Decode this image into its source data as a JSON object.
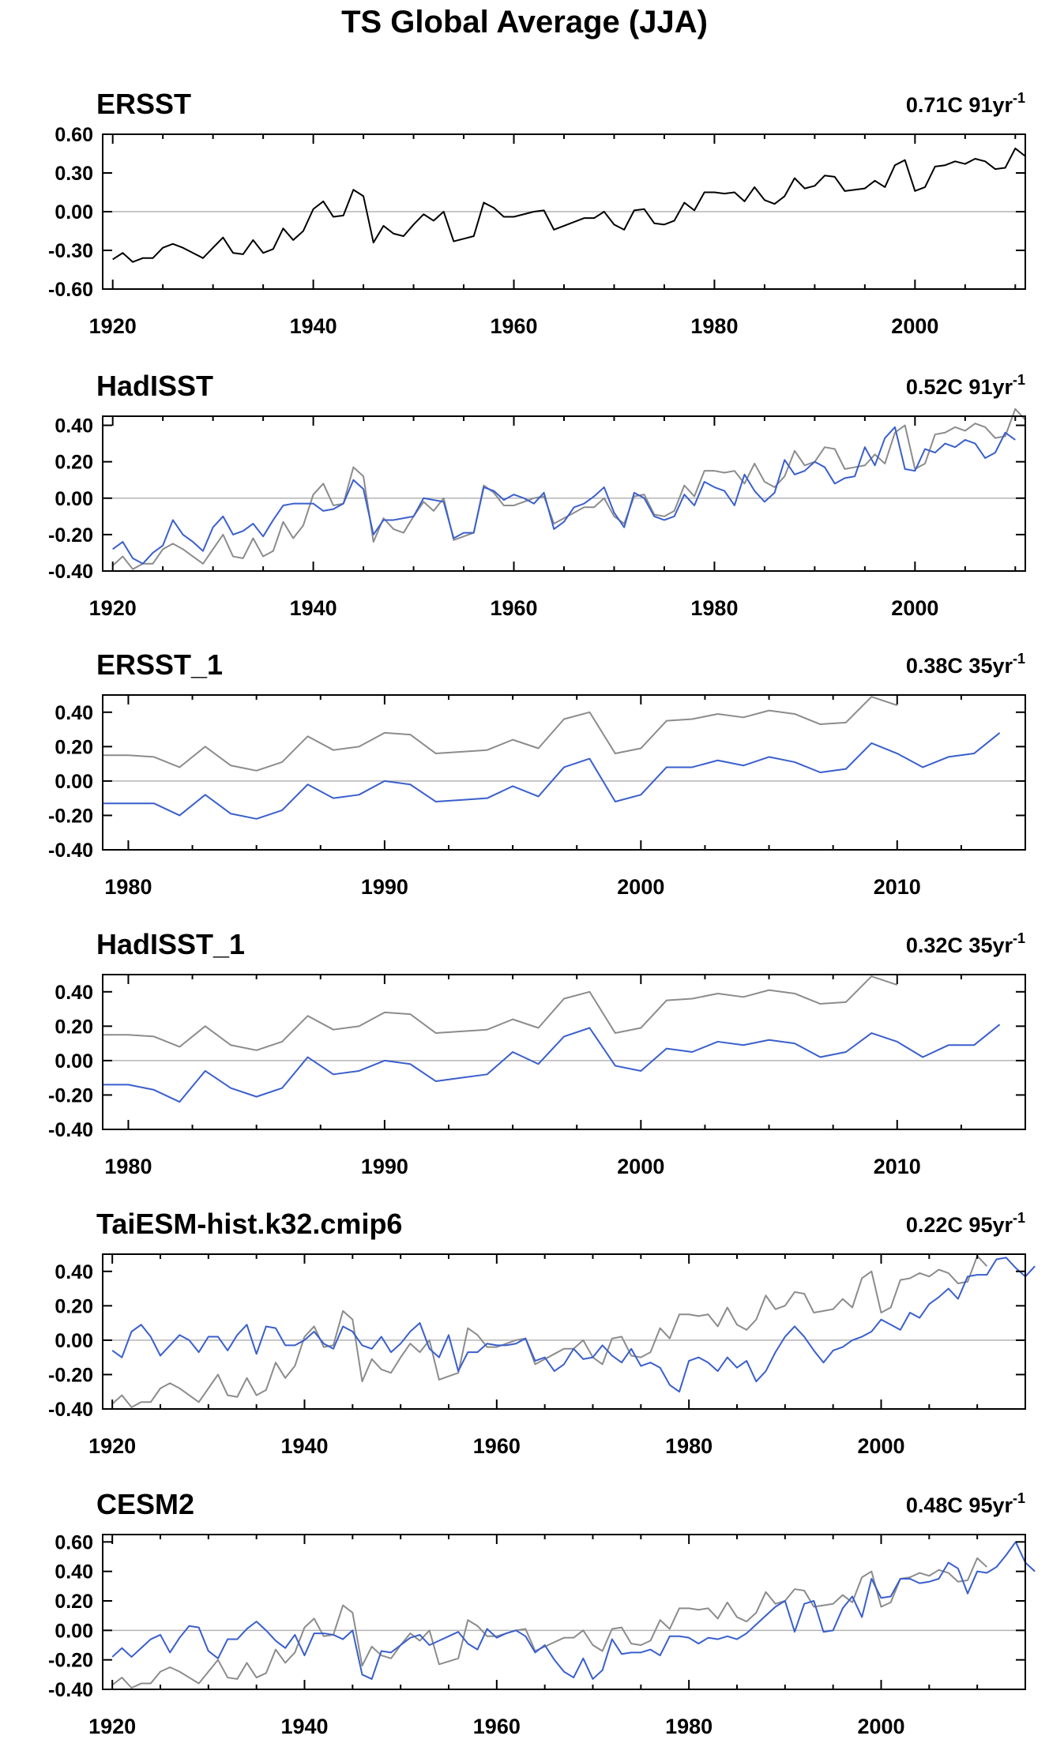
{
  "title": "TS Global Average (JJA)",
  "colors": {
    "reference": "#000000",
    "reference_overlay": "#8c8c8c",
    "model": "#3a5fcd",
    "zero_line": "#b4b4b4"
  },
  "chart_data": [
    {
      "type": "line",
      "title": "ERSST",
      "trend": "0.71C 91yr",
      "trend_exponent": "-1",
      "xlim": [
        1919,
        2011
      ],
      "ylim": [
        -0.6,
        0.6
      ],
      "yticks": [
        "0.60",
        "0.30",
        "0.00",
        "-0.30",
        "-0.60"
      ],
      "yvals": [
        0.6,
        0.3,
        0.0,
        -0.3,
        -0.6
      ],
      "xticks": [
        1920,
        1940,
        1960,
        1980,
        2000
      ],
      "series": [
        {
          "role": "reference",
          "x_start": 1920,
          "values": [
            -0.37,
            -0.32,
            -0.39,
            -0.36,
            -0.36,
            -0.28,
            -0.25,
            -0.28,
            -0.32,
            -0.36,
            -0.28,
            -0.2,
            -0.32,
            -0.33,
            -0.22,
            -0.32,
            -0.29,
            -0.13,
            -0.22,
            -0.15,
            0.02,
            0.08,
            -0.04,
            -0.03,
            0.17,
            0.12,
            -0.24,
            -0.11,
            -0.17,
            -0.19,
            -0.1,
            -0.02,
            -0.07,
            0.0,
            -0.23,
            -0.21,
            -0.19,
            0.07,
            0.03,
            -0.04,
            -0.04,
            -0.02,
            0.0,
            0.01,
            -0.14,
            -0.11,
            -0.08,
            -0.05,
            -0.05,
            0.0,
            -0.1,
            -0.14,
            0.01,
            0.02,
            -0.09,
            -0.1,
            -0.07,
            0.07,
            0.01,
            0.15,
            0.15,
            0.14,
            0.15,
            0.08,
            0.19,
            0.09,
            0.06,
            0.12,
            0.26,
            0.18,
            0.2,
            0.28,
            0.27,
            0.16,
            0.17,
            0.18,
            0.24,
            0.19,
            0.36,
            0.4,
            0.16,
            0.19,
            0.35,
            0.36,
            0.39,
            0.37,
            0.41,
            0.39,
            0.33,
            0.34,
            0.49,
            0.43
          ]
        }
      ]
    },
    {
      "type": "line",
      "title": "HadISST",
      "trend": "0.52C 91yr",
      "trend_exponent": "-1",
      "xlim": [
        1919,
        2011
      ],
      "ylim": [
        -0.4,
        0.45
      ],
      "yticks": [
        "0.40",
        "0.20",
        "0.00",
        "-0.20",
        "-0.40"
      ],
      "yvals": [
        0.4,
        0.2,
        0.0,
        -0.2,
        -0.4
      ],
      "xticks": [
        1920,
        1940,
        1960,
        1980,
        2000
      ],
      "series": [
        {
          "role": "reference_overlay",
          "x_start": 1920,
          "values": [
            -0.37,
            -0.32,
            -0.39,
            -0.36,
            -0.36,
            -0.28,
            -0.25,
            -0.28,
            -0.32,
            -0.36,
            -0.28,
            -0.2,
            -0.32,
            -0.33,
            -0.22,
            -0.32,
            -0.29,
            -0.13,
            -0.22,
            -0.15,
            0.02,
            0.08,
            -0.04,
            -0.03,
            0.17,
            0.12,
            -0.24,
            -0.11,
            -0.17,
            -0.19,
            -0.1,
            -0.02,
            -0.07,
            0.0,
            -0.23,
            -0.21,
            -0.19,
            0.07,
            0.03,
            -0.04,
            -0.04,
            -0.02,
            0.0,
            0.01,
            -0.14,
            -0.11,
            -0.08,
            -0.05,
            -0.05,
            0.0,
            -0.1,
            -0.14,
            0.01,
            0.02,
            -0.09,
            -0.1,
            -0.07,
            0.07,
            0.01,
            0.15,
            0.15,
            0.14,
            0.15,
            0.08,
            0.19,
            0.09,
            0.06,
            0.12,
            0.26,
            0.18,
            0.2,
            0.28,
            0.27,
            0.16,
            0.17,
            0.18,
            0.24,
            0.19,
            0.36,
            0.4,
            0.16,
            0.19,
            0.35,
            0.36,
            0.39,
            0.37,
            0.41,
            0.39,
            0.33,
            0.34,
            0.49,
            0.43
          ]
        },
        {
          "role": "model",
          "x_start": 1920,
          "values": [
            -0.28,
            -0.24,
            -0.33,
            -0.36,
            -0.3,
            -0.26,
            -0.12,
            -0.2,
            -0.24,
            -0.29,
            -0.16,
            -0.1,
            -0.2,
            -0.18,
            -0.14,
            -0.21,
            -0.12,
            -0.04,
            -0.03,
            -0.03,
            -0.03,
            -0.07,
            -0.06,
            -0.03,
            0.1,
            0.05,
            -0.2,
            -0.12,
            -0.12,
            -0.11,
            -0.1,
            0.0,
            -0.01,
            -0.02,
            -0.22,
            -0.19,
            -0.19,
            0.06,
            0.04,
            -0.01,
            0.02,
            0.0,
            -0.03,
            0.03,
            -0.17,
            -0.13,
            -0.05,
            -0.03,
            0.01,
            0.06,
            -0.08,
            -0.16,
            0.03,
            0.0,
            -0.1,
            -0.12,
            -0.1,
            0.02,
            -0.04,
            0.09,
            0.06,
            0.04,
            -0.04,
            0.13,
            0.04,
            -0.02,
            0.03,
            0.21,
            0.13,
            0.15,
            0.2,
            0.17,
            0.08,
            0.11,
            0.12,
            0.28,
            0.18,
            0.33,
            0.39,
            0.16,
            0.15,
            0.27,
            0.25,
            0.3,
            0.28,
            0.32,
            0.3,
            0.22,
            0.25,
            0.36,
            0.32
          ]
        }
      ]
    },
    {
      "type": "line",
      "title": "ERSST_1",
      "trend": "0.38C 35yr",
      "trend_exponent": "-1",
      "xlim": [
        1979,
        2015
      ],
      "ylim": [
        -0.4,
        0.5
      ],
      "yticks": [
        "0.40",
        "0.20",
        "0.00",
        "-0.20",
        "-0.40"
      ],
      "yvals": [
        0.4,
        0.2,
        0.0,
        -0.2,
        -0.4
      ],
      "xticks": [
        1980,
        1990,
        2000,
        2010
      ],
      "series": [
        {
          "role": "reference_overlay",
          "x_start": 1979,
          "values": [
            0.15,
            0.15,
            0.14,
            0.08,
            0.2,
            0.09,
            0.06,
            0.11,
            0.26,
            0.18,
            0.2,
            0.28,
            0.27,
            0.16,
            0.17,
            0.18,
            0.24,
            0.19,
            0.36,
            0.4,
            0.16,
            0.19,
            0.35,
            0.36,
            0.39,
            0.37,
            0.41,
            0.39,
            0.33,
            0.34,
            0.49,
            0.44
          ]
        },
        {
          "role": "model",
          "x_start": 1979,
          "values": [
            -0.13,
            -0.13,
            -0.13,
            -0.2,
            -0.08,
            -0.19,
            -0.22,
            -0.17,
            -0.02,
            -0.1,
            -0.08,
            0.0,
            -0.02,
            -0.12,
            -0.11,
            -0.1,
            -0.03,
            -0.09,
            0.08,
            0.13,
            -0.12,
            -0.08,
            0.08,
            0.08,
            0.12,
            0.09,
            0.14,
            0.11,
            0.05,
            0.07,
            0.22,
            0.16,
            0.08,
            0.14,
            0.16,
            0.28
          ]
        }
      ]
    },
    {
      "type": "line",
      "title": "HadISST_1",
      "trend": "0.32C 35yr",
      "trend_exponent": "-1",
      "xlim": [
        1979,
        2015
      ],
      "ylim": [
        -0.4,
        0.5
      ],
      "yticks": [
        "0.40",
        "0.20",
        "0.00",
        "-0.20",
        "-0.40"
      ],
      "yvals": [
        0.4,
        0.2,
        0.0,
        -0.2,
        -0.4
      ],
      "xticks": [
        1980,
        1990,
        2000,
        2010
      ],
      "series": [
        {
          "role": "reference_overlay",
          "x_start": 1979,
          "values": [
            0.15,
            0.15,
            0.14,
            0.08,
            0.2,
            0.09,
            0.06,
            0.11,
            0.26,
            0.18,
            0.2,
            0.28,
            0.27,
            0.16,
            0.17,
            0.18,
            0.24,
            0.19,
            0.36,
            0.4,
            0.16,
            0.19,
            0.35,
            0.36,
            0.39,
            0.37,
            0.41,
            0.39,
            0.33,
            0.34,
            0.49,
            0.44
          ]
        },
        {
          "role": "model",
          "x_start": 1979,
          "values": [
            -0.14,
            -0.14,
            -0.17,
            -0.24,
            -0.06,
            -0.16,
            -0.21,
            -0.16,
            0.02,
            -0.08,
            -0.06,
            0.0,
            -0.02,
            -0.12,
            -0.1,
            -0.08,
            0.05,
            -0.02,
            0.14,
            0.19,
            -0.03,
            -0.06,
            0.07,
            0.05,
            0.11,
            0.09,
            0.12,
            0.1,
            0.02,
            0.05,
            0.16,
            0.11,
            0.02,
            0.09,
            0.09,
            0.21
          ]
        }
      ]
    },
    {
      "type": "line",
      "title": "TaiESM-hist.k32.cmip6",
      "trend": "0.22C 95yr",
      "trend_exponent": "-1",
      "xlim": [
        1919,
        2015
      ],
      "ylim": [
        -0.4,
        0.5
      ],
      "yticks": [
        "0.40",
        "0.20",
        "0.00",
        "-0.20",
        "-0.40"
      ],
      "yvals": [
        0.4,
        0.2,
        0.0,
        -0.2,
        -0.4
      ],
      "xticks": [
        1920,
        1940,
        1960,
        1980,
        2000
      ],
      "series": [
        {
          "role": "reference_overlay",
          "x_start": 1920,
          "values": [
            -0.37,
            -0.32,
            -0.39,
            -0.36,
            -0.36,
            -0.28,
            -0.25,
            -0.28,
            -0.32,
            -0.36,
            -0.28,
            -0.2,
            -0.32,
            -0.33,
            -0.22,
            -0.32,
            -0.29,
            -0.13,
            -0.22,
            -0.15,
            0.02,
            0.08,
            -0.04,
            -0.03,
            0.17,
            0.12,
            -0.24,
            -0.11,
            -0.17,
            -0.19,
            -0.1,
            -0.02,
            -0.07,
            0.0,
            -0.23,
            -0.21,
            -0.19,
            0.07,
            0.03,
            -0.04,
            -0.04,
            -0.02,
            0.0,
            0.01,
            -0.14,
            -0.11,
            -0.08,
            -0.05,
            -0.05,
            0.0,
            -0.1,
            -0.14,
            0.01,
            0.02,
            -0.09,
            -0.1,
            -0.07,
            0.07,
            0.01,
            0.15,
            0.15,
            0.14,
            0.15,
            0.08,
            0.19,
            0.09,
            0.06,
            0.12,
            0.26,
            0.18,
            0.2,
            0.28,
            0.27,
            0.16,
            0.17,
            0.18,
            0.24,
            0.19,
            0.36,
            0.4,
            0.16,
            0.19,
            0.35,
            0.36,
            0.39,
            0.37,
            0.41,
            0.39,
            0.33,
            0.34,
            0.49,
            0.43
          ]
        },
        {
          "role": "model",
          "x_start": 1920,
          "values": [
            -0.06,
            -0.1,
            0.05,
            0.09,
            0.02,
            -0.09,
            -0.03,
            0.03,
            0.0,
            -0.07,
            0.02,
            0.02,
            -0.06,
            0.03,
            0.09,
            -0.08,
            0.08,
            0.07,
            -0.03,
            -0.03,
            0.0,
            0.05,
            -0.02,
            -0.05,
            0.08,
            0.05,
            -0.03,
            -0.05,
            0.02,
            -0.07,
            -0.02,
            0.05,
            0.1,
            -0.05,
            -0.1,
            0.03,
            -0.18,
            -0.07,
            -0.07,
            -0.02,
            -0.03,
            -0.03,
            -0.02,
            0.01,
            -0.12,
            -0.1,
            -0.18,
            -0.14,
            -0.05,
            -0.11,
            -0.1,
            -0.03,
            -0.09,
            -0.13,
            -0.05,
            -0.15,
            -0.13,
            -0.16,
            -0.26,
            -0.3,
            -0.12,
            -0.1,
            -0.13,
            -0.18,
            -0.1,
            -0.16,
            -0.12,
            -0.24,
            -0.18,
            -0.07,
            0.02,
            0.08,
            0.02,
            -0.06,
            -0.13,
            -0.06,
            -0.04,
            0.0,
            0.02,
            0.05,
            0.12,
            0.09,
            0.06,
            0.16,
            0.13,
            0.21,
            0.25,
            0.3,
            0.24,
            0.37,
            0.38,
            0.38,
            0.47,
            0.48,
            0.42,
            0.37,
            0.43
          ]
        }
      ]
    },
    {
      "type": "line",
      "title": "CESM2",
      "trend": "0.48C 95yr",
      "trend_exponent": "-1",
      "xlim": [
        1919,
        2015
      ],
      "ylim": [
        -0.4,
        0.65
      ],
      "yticks": [
        "0.60",
        "0.40",
        "0.20",
        "0.00",
        "-0.20",
        "-0.40"
      ],
      "yvals": [
        0.6,
        0.4,
        0.2,
        0.0,
        -0.2,
        -0.4
      ],
      "xticks": [
        1920,
        1940,
        1960,
        1980,
        2000
      ],
      "series": [
        {
          "role": "reference_overlay",
          "x_start": 1920,
          "values": [
            -0.37,
            -0.32,
            -0.39,
            -0.36,
            -0.36,
            -0.28,
            -0.25,
            -0.28,
            -0.32,
            -0.36,
            -0.28,
            -0.2,
            -0.32,
            -0.33,
            -0.22,
            -0.32,
            -0.29,
            -0.13,
            -0.22,
            -0.15,
            0.02,
            0.08,
            -0.04,
            -0.03,
            0.17,
            0.12,
            -0.24,
            -0.11,
            -0.17,
            -0.19,
            -0.1,
            -0.02,
            -0.07,
            0.0,
            -0.23,
            -0.21,
            -0.19,
            0.07,
            0.03,
            -0.04,
            -0.04,
            -0.02,
            0.0,
            0.01,
            -0.14,
            -0.11,
            -0.08,
            -0.05,
            -0.05,
            0.0,
            -0.1,
            -0.14,
            0.01,
            0.02,
            -0.09,
            -0.1,
            -0.07,
            0.07,
            0.01,
            0.15,
            0.15,
            0.14,
            0.15,
            0.08,
            0.19,
            0.09,
            0.06,
            0.12,
            0.26,
            0.18,
            0.2,
            0.28,
            0.27,
            0.16,
            0.17,
            0.18,
            0.24,
            0.19,
            0.36,
            0.4,
            0.16,
            0.19,
            0.35,
            0.36,
            0.39,
            0.37,
            0.41,
            0.39,
            0.33,
            0.34,
            0.49,
            0.43
          ]
        },
        {
          "role": "model",
          "x_start": 1920,
          "values": [
            -0.18,
            -0.12,
            -0.18,
            -0.12,
            -0.06,
            -0.03,
            -0.15,
            -0.05,
            0.03,
            0.02,
            -0.14,
            -0.19,
            -0.06,
            -0.06,
            0.01,
            0.06,
            0.0,
            -0.07,
            -0.12,
            -0.03,
            -0.17,
            -0.02,
            -0.02,
            -0.03,
            -0.06,
            0.0,
            -0.3,
            -0.33,
            -0.14,
            -0.15,
            -0.1,
            -0.05,
            -0.03,
            -0.1,
            -0.07,
            -0.04,
            -0.01,
            -0.09,
            -0.13,
            0.01,
            -0.05,
            -0.02,
            0.0,
            -0.04,
            -0.15,
            -0.1,
            -0.2,
            -0.28,
            -0.32,
            -0.19,
            -0.33,
            -0.27,
            -0.06,
            -0.16,
            -0.15,
            -0.15,
            -0.13,
            -0.17,
            -0.04,
            -0.04,
            -0.05,
            -0.09,
            -0.05,
            -0.06,
            -0.04,
            -0.06,
            -0.02,
            0.04,
            0.1,
            0.16,
            0.2,
            -0.01,
            0.18,
            0.2,
            -0.01,
            0.0,
            0.15,
            0.23,
            0.09,
            0.35,
            0.22,
            0.23,
            0.35,
            0.35,
            0.32,
            0.33,
            0.35,
            0.46,
            0.42,
            0.25,
            0.4,
            0.39,
            0.43,
            0.51,
            0.6,
            0.46,
            0.4
          ]
        }
      ]
    }
  ]
}
